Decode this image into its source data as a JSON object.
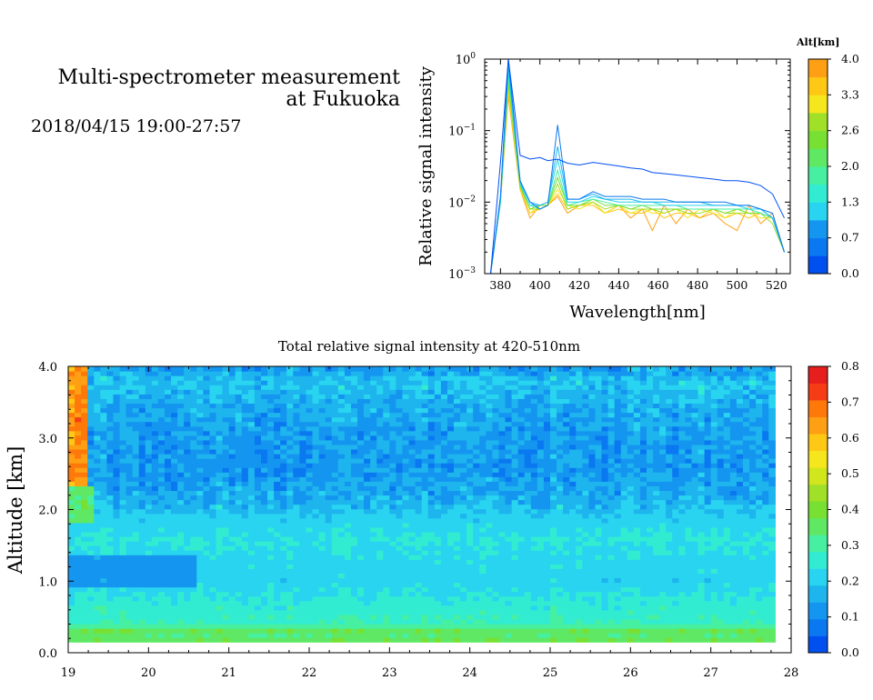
{
  "title": {
    "line1": "Multi-spectrometer measurement",
    "line2": "at Fukuoka",
    "datetime": "2018/04/15 19:00-27:57"
  },
  "colors": {
    "scale": [
      "#0050f0",
      "#0a78f0",
      "#1496f0",
      "#1eb4ee",
      "#28d4f0",
      "#32ecd2",
      "#46f0a0",
      "#5ee864",
      "#78e032",
      "#a0e028",
      "#d2e61e",
      "#f5e61e",
      "#ffc814",
      "#ffa014",
      "#ff780a",
      "#f53c14",
      "#e61e1e"
    ]
  },
  "chart_data": [
    {
      "id": "spectrum",
      "type": "line",
      "xlabel": "Wavelength[nm]",
      "ylabel": "Relative signal intensity",
      "xlim": [
        372,
        527
      ],
      "ylim": [
        0.001,
        1
      ],
      "y_scale": "log",
      "x_ticks": [
        "380",
        "400",
        "420",
        "440",
        "460",
        "480",
        "500",
        "520"
      ],
      "y_ticks": [
        "10^0",
        "10^-1",
        "10^-2",
        "10^-3"
      ],
      "colorbar_title": "Alt[km]",
      "colorbar_ticks": [
        "4.0",
        "3.3",
        "2.6",
        "2.0",
        "1.3",
        "0.7",
        "0.0"
      ],
      "colorbar_range": [
        0,
        4.0
      ],
      "x": [
        375,
        380,
        384,
        390,
        395,
        400,
        404,
        409,
        414,
        420,
        427,
        433,
        440,
        446,
        452,
        457,
        463,
        469,
        475,
        481,
        488,
        494,
        500,
        506,
        512,
        518,
        524
      ],
      "series": [
        {
          "alt": 0.0,
          "values": [
            0.001,
            0.035,
            1.0,
            0.045,
            0.04,
            0.042,
            0.038,
            0.04,
            0.035,
            0.033,
            0.036,
            0.034,
            0.032,
            0.03,
            0.029,
            0.026,
            0.025,
            0.024,
            0.023,
            0.022,
            0.021,
            0.02,
            0.02,
            0.019,
            0.017,
            0.013,
            0.006
          ]
        },
        {
          "alt": 0.5,
          "values": [
            0.001,
            0.012,
            1.0,
            0.02,
            0.01,
            0.008,
            0.009,
            0.12,
            0.011,
            0.011,
            0.014,
            0.012,
            0.012,
            0.012,
            0.011,
            0.011,
            0.011,
            0.01,
            0.01,
            0.01,
            0.01,
            0.01,
            0.009,
            0.009,
            0.008,
            0.007,
            0.002
          ]
        },
        {
          "alt": 1.0,
          "values": [
            0.001,
            0.011,
            0.8,
            0.019,
            0.01,
            0.009,
            0.01,
            0.06,
            0.011,
            0.011,
            0.013,
            0.011,
            0.011,
            0.011,
            0.01,
            0.01,
            0.01,
            0.01,
            0.01,
            0.01,
            0.009,
            0.009,
            0.009,
            0.009,
            0.008,
            0.006,
            0.002
          ]
        },
        {
          "alt": 1.3,
          "values": [
            0.001,
            0.01,
            0.7,
            0.018,
            0.009,
            0.009,
            0.01,
            0.04,
            0.01,
            0.01,
            0.012,
            0.011,
            0.01,
            0.01,
            0.01,
            0.01,
            0.009,
            0.009,
            0.009,
            0.009,
            0.009,
            0.009,
            0.009,
            0.008,
            0.008,
            0.006,
            0.002
          ]
        },
        {
          "alt": 1.8,
          "values": [
            0.001,
            0.01,
            0.6,
            0.018,
            0.009,
            0.008,
            0.009,
            0.028,
            0.009,
            0.01,
            0.011,
            0.01,
            0.009,
            0.009,
            0.009,
            0.009,
            0.009,
            0.009,
            0.008,
            0.008,
            0.008,
            0.008,
            0.008,
            0.008,
            0.007,
            0.006,
            0.002
          ]
        },
        {
          "alt": 2.3,
          "values": [
            0.001,
            0.01,
            0.5,
            0.017,
            0.008,
            0.009,
            0.009,
            0.022,
            0.009,
            0.009,
            0.011,
            0.009,
            0.009,
            0.008,
            0.009,
            0.008,
            0.008,
            0.008,
            0.008,
            0.008,
            0.008,
            0.007,
            0.008,
            0.007,
            0.007,
            0.006,
            0.002
          ]
        },
        {
          "alt": 2.8,
          "values": [
            0.001,
            0.01,
            0.45,
            0.016,
            0.008,
            0.008,
            0.009,
            0.018,
            0.008,
            0.009,
            0.01,
            0.008,
            0.009,
            0.008,
            0.008,
            0.008,
            0.007,
            0.008,
            0.007,
            0.007,
            0.008,
            0.007,
            0.007,
            0.007,
            0.007,
            0.005,
            0.002
          ]
        },
        {
          "alt": 3.3,
          "values": [
            0.001,
            0.01,
            0.4,
            0.016,
            0.007,
            0.009,
            0.009,
            0.015,
            0.009,
            0.008,
            0.01,
            0.007,
            0.009,
            0.007,
            0.008,
            0.007,
            0.007,
            0.008,
            0.006,
            0.008,
            0.007,
            0.006,
            0.008,
            0.007,
            0.006,
            0.006,
            0.002
          ]
        },
        {
          "alt": 3.7,
          "values": [
            0.001,
            0.01,
            0.35,
            0.015,
            0.007,
            0.008,
            0.009,
            0.013,
            0.008,
            0.009,
            0.009,
            0.007,
            0.008,
            0.007,
            0.007,
            0.008,
            0.006,
            0.007,
            0.007,
            0.006,
            0.008,
            0.006,
            0.007,
            0.006,
            0.007,
            0.006,
            0.002
          ]
        },
        {
          "alt": 4.0,
          "values": [
            0.001,
            0.01,
            0.3,
            0.015,
            0.006,
            0.009,
            0.009,
            0.012,
            0.007,
            0.009,
            0.01,
            0.007,
            0.009,
            0.006,
            0.008,
            0.004,
            0.009,
            0.005,
            0.008,
            0.006,
            0.007,
            0.005,
            0.004,
            0.009,
            0.005,
            0.007,
            0.002
          ]
        }
      ]
    },
    {
      "id": "timeseries",
      "type": "heatmap",
      "title": "Total relative signal intensity at 420-510nm",
      "ylabel": "Altitude [km]",
      "xlim": [
        19,
        28
      ],
      "ylim": [
        0,
        4.0
      ],
      "x_ticks": [
        "19",
        "20",
        "21",
        "22",
        "23",
        "24",
        "25",
        "26",
        "27",
        "28"
      ],
      "y_ticks": [
        "0.0",
        "1.0",
        "2.0",
        "3.0",
        "4.0"
      ],
      "data_x_range": [
        19,
        27.8
      ],
      "data_y_range": [
        0.15,
        4.0
      ],
      "colorbar_ticks": [
        "0.8",
        "0.7",
        "0.6",
        "0.5",
        "0.4",
        "0.3",
        "0.2",
        "0.1",
        "0.0"
      ],
      "colorbar_range": [
        0,
        0.8
      ],
      "altitude_profile": [
        {
          "alt": 0.15,
          "value": 0.4
        },
        {
          "alt": 0.22,
          "value": 0.32
        },
        {
          "alt": 0.3,
          "value": 0.38
        },
        {
          "alt": 0.4,
          "value": 0.28
        },
        {
          "alt": 0.7,
          "value": 0.25
        },
        {
          "alt": 1.0,
          "value": 0.21
        },
        {
          "alt": 1.3,
          "value": 0.22
        },
        {
          "alt": 1.6,
          "value": 0.24
        },
        {
          "alt": 1.9,
          "value": 0.2
        },
        {
          "alt": 2.2,
          "value": 0.15
        },
        {
          "alt": 2.6,
          "value": 0.12
        },
        {
          "alt": 3.0,
          "value": 0.13
        },
        {
          "alt": 3.4,
          "value": 0.15
        },
        {
          "alt": 3.8,
          "value": 0.19
        },
        {
          "alt": 4.0,
          "value": 0.12
        }
      ],
      "features": [
        {
          "x0": 19.0,
          "x1": 20.6,
          "y0": 0.95,
          "y1": 1.35,
          "value": 0.12
        },
        {
          "x0": 19.0,
          "x1": 19.25,
          "y0": 2.0,
          "y1": 4.0,
          "value": 0.65
        },
        {
          "x0": 19.0,
          "x1": 19.35,
          "y0": 1.8,
          "y1": 2.3,
          "value": 0.35
        }
      ]
    }
  ]
}
